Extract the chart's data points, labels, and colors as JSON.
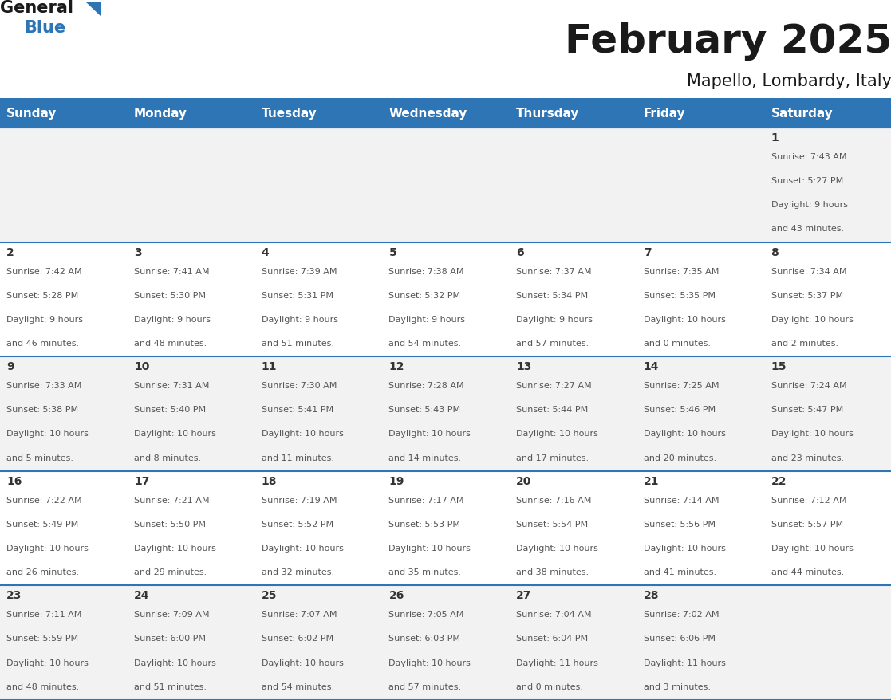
{
  "title": "February 2025",
  "subtitle": "Mapello, Lombardy, Italy",
  "header_bg": "#2E75B6",
  "header_text_color": "#FFFFFF",
  "day_names": [
    "Sunday",
    "Monday",
    "Tuesday",
    "Wednesday",
    "Thursday",
    "Friday",
    "Saturday"
  ],
  "bg_color": "#FFFFFF",
  "cell_bg_row0": "#F2F2F2",
  "cell_bg_row1": "#FFFFFF",
  "cell_bg_row2": "#F2F2F2",
  "cell_bg_row3": "#FFFFFF",
  "cell_bg_row4": "#F2F2F2",
  "border_color": "#2E75B6",
  "day_number_color": "#333333",
  "info_text_color": "#555555",
  "logo_general_color": "#1a1a1a",
  "logo_blue_color": "#2E75B6",
  "logo_triangle_color": "#2E75B6",
  "calendar_data": [
    [
      null,
      null,
      null,
      null,
      null,
      null,
      {
        "day": 1,
        "sunrise": "7:43 AM",
        "sunset": "5:27 PM",
        "daylight": "9 hours and 43 minutes."
      }
    ],
    [
      {
        "day": 2,
        "sunrise": "7:42 AM",
        "sunset": "5:28 PM",
        "daylight": "9 hours and 46 minutes."
      },
      {
        "day": 3,
        "sunrise": "7:41 AM",
        "sunset": "5:30 PM",
        "daylight": "9 hours and 48 minutes."
      },
      {
        "day": 4,
        "sunrise": "7:39 AM",
        "sunset": "5:31 PM",
        "daylight": "9 hours and 51 minutes."
      },
      {
        "day": 5,
        "sunrise": "7:38 AM",
        "sunset": "5:32 PM",
        "daylight": "9 hours and 54 minutes."
      },
      {
        "day": 6,
        "sunrise": "7:37 AM",
        "sunset": "5:34 PM",
        "daylight": "9 hours and 57 minutes."
      },
      {
        "day": 7,
        "sunrise": "7:35 AM",
        "sunset": "5:35 PM",
        "daylight": "10 hours and 0 minutes."
      },
      {
        "day": 8,
        "sunrise": "7:34 AM",
        "sunset": "5:37 PM",
        "daylight": "10 hours and 2 minutes."
      }
    ],
    [
      {
        "day": 9,
        "sunrise": "7:33 AM",
        "sunset": "5:38 PM",
        "daylight": "10 hours and 5 minutes."
      },
      {
        "day": 10,
        "sunrise": "7:31 AM",
        "sunset": "5:40 PM",
        "daylight": "10 hours and 8 minutes."
      },
      {
        "day": 11,
        "sunrise": "7:30 AM",
        "sunset": "5:41 PM",
        "daylight": "10 hours and 11 minutes."
      },
      {
        "day": 12,
        "sunrise": "7:28 AM",
        "sunset": "5:43 PM",
        "daylight": "10 hours and 14 minutes."
      },
      {
        "day": 13,
        "sunrise": "7:27 AM",
        "sunset": "5:44 PM",
        "daylight": "10 hours and 17 minutes."
      },
      {
        "day": 14,
        "sunrise": "7:25 AM",
        "sunset": "5:46 PM",
        "daylight": "10 hours and 20 minutes."
      },
      {
        "day": 15,
        "sunrise": "7:24 AM",
        "sunset": "5:47 PM",
        "daylight": "10 hours and 23 minutes."
      }
    ],
    [
      {
        "day": 16,
        "sunrise": "7:22 AM",
        "sunset": "5:49 PM",
        "daylight": "10 hours and 26 minutes."
      },
      {
        "day": 17,
        "sunrise": "7:21 AM",
        "sunset": "5:50 PM",
        "daylight": "10 hours and 29 minutes."
      },
      {
        "day": 18,
        "sunrise": "7:19 AM",
        "sunset": "5:52 PM",
        "daylight": "10 hours and 32 minutes."
      },
      {
        "day": 19,
        "sunrise": "7:17 AM",
        "sunset": "5:53 PM",
        "daylight": "10 hours and 35 minutes."
      },
      {
        "day": 20,
        "sunrise": "7:16 AM",
        "sunset": "5:54 PM",
        "daylight": "10 hours and 38 minutes."
      },
      {
        "day": 21,
        "sunrise": "7:14 AM",
        "sunset": "5:56 PM",
        "daylight": "10 hours and 41 minutes."
      },
      {
        "day": 22,
        "sunrise": "7:12 AM",
        "sunset": "5:57 PM",
        "daylight": "10 hours and 44 minutes."
      }
    ],
    [
      {
        "day": 23,
        "sunrise": "7:11 AM",
        "sunset": "5:59 PM",
        "daylight": "10 hours and 48 minutes."
      },
      {
        "day": 24,
        "sunrise": "7:09 AM",
        "sunset": "6:00 PM",
        "daylight": "10 hours and 51 minutes."
      },
      {
        "day": 25,
        "sunrise": "7:07 AM",
        "sunset": "6:02 PM",
        "daylight": "10 hours and 54 minutes."
      },
      {
        "day": 26,
        "sunrise": "7:05 AM",
        "sunset": "6:03 PM",
        "daylight": "10 hours and 57 minutes."
      },
      {
        "day": 27,
        "sunrise": "7:04 AM",
        "sunset": "6:04 PM",
        "daylight": "11 hours and 0 minutes."
      },
      {
        "day": 28,
        "sunrise": "7:02 AM",
        "sunset": "6:06 PM",
        "daylight": "11 hours and 3 minutes."
      },
      null
    ]
  ]
}
